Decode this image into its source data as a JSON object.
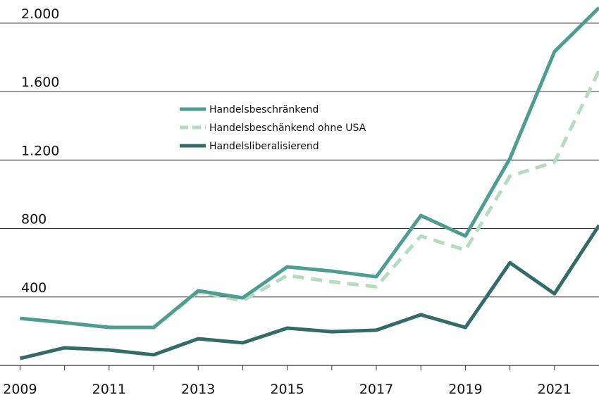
{
  "chart_data": {
    "type": "line",
    "x": [
      2009,
      2010,
      2011,
      2012,
      2013,
      2014,
      2015,
      2016,
      2017,
      2018,
      2019,
      2020,
      2021,
      2022
    ],
    "series": [
      {
        "name": "Handelsbeschränkend",
        "color": "#4e9e8f",
        "dashed": false,
        "values": [
          275,
          250,
          222,
          222,
          436,
          395,
          576,
          551,
          518,
          876,
          756,
          1209,
          1833,
          2090
        ]
      },
      {
        "name": "Handelsbeschänkend ohne USA",
        "color": "#b5dbc0",
        "dashed": true,
        "values": [
          275,
          250,
          222,
          222,
          428,
          378,
          526,
          489,
          460,
          756,
          674,
          1106,
          1188,
          1722
        ]
      },
      {
        "name": "Handelsliberalisierend",
        "color": "#336b67",
        "dashed": false,
        "values": [
          41,
          103,
          90,
          62,
          156,
          132,
          218,
          197,
          206,
          296,
          222,
          600,
          419,
          818
        ]
      }
    ],
    "xlim": [
      2008.55,
      2022
    ],
    "xticks": [
      2009,
      2011,
      2013,
      2015,
      2017,
      2019,
      2021
    ],
    "xminorticks": [
      2010,
      2012,
      2014,
      2016,
      2018,
      2020
    ],
    "ylim": [
      0,
      2135
    ],
    "yticks": [
      400,
      800,
      {
        "value": 1200,
        "label": "1.200"
      },
      {
        "value": 1600,
        "label": "1.600"
      },
      {
        "value": 2000,
        "label": "2.000"
      }
    ],
    "grid": true
  }
}
